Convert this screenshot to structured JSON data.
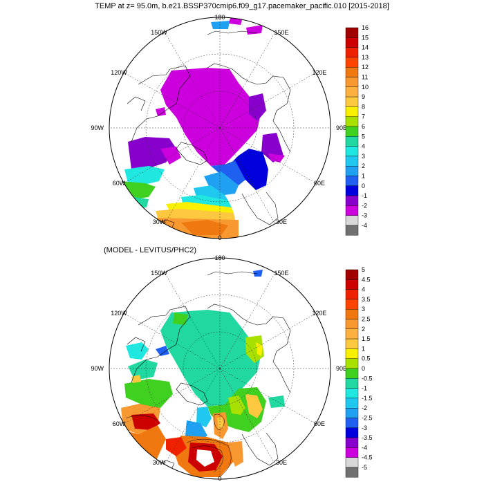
{
  "title": "TEMP at z=  95.0m, b.e21.BSSP370cmip6.f09_g17.pacemaker_pacific.010 [2015-2018]",
  "subtitle": "(MODEL - LEVITUS/PHC2)",
  "chart_data": [
    {
      "type": "heatmap",
      "projection": "north-polar-stereographic",
      "grid": true,
      "longitude_labels": [
        "180",
        "150E",
        "120E",
        "90E",
        "60E",
        "30E",
        "0",
        "30W",
        "60W",
        "90W",
        "120W",
        "150W"
      ],
      "colorbar": {
        "placement": "right",
        "labels": [
          "16",
          "15",
          "14",
          "13",
          "12",
          "11",
          "10",
          "9",
          "8",
          "7",
          "6",
          "5",
          "4",
          "3",
          "2",
          "1",
          "0",
          "-1",
          "-2",
          "-3",
          "-4"
        ],
        "colors": [
          "#a00000",
          "#cc0000",
          "#ee2200",
          "#ff4400",
          "#f07810",
          "#f89830",
          "#fcb040",
          "#fcc840",
          "#f8f000",
          "#a8e000",
          "#40d020",
          "#20d8a0",
          "#20e8e0",
          "#20c8f0",
          "#20a0f0",
          "#2060f0",
          "#0000dd",
          "#8800cc",
          "#cc00dd",
          "#d8d8d8",
          "#707070"
        ]
      }
    },
    {
      "type": "heatmap",
      "projection": "north-polar-stereographic",
      "grid": true,
      "longitude_labels": [
        "180",
        "150E",
        "120E",
        "90E",
        "60E",
        "30E",
        "0",
        "30W",
        "60W",
        "90W",
        "120W",
        "150W"
      ],
      "colorbar": {
        "placement": "right",
        "labels": [
          "5",
          "4.5",
          "4",
          "3.5",
          "3",
          "2.5",
          "2",
          "1.5",
          "1",
          "0.5",
          "0",
          "-0.5",
          "-1",
          "-1.5",
          "-2",
          "-2.5",
          "-3",
          "-3.5",
          "-4",
          "-4.5",
          "-5"
        ],
        "colors": [
          "#a00000",
          "#cc0000",
          "#ee2200",
          "#ff4400",
          "#f07810",
          "#f89830",
          "#fcb040",
          "#fcc840",
          "#f8f000",
          "#a8e000",
          "#40d020",
          "#20d8a0",
          "#20e8e0",
          "#20c8f0",
          "#20a0f0",
          "#2060f0",
          "#0000dd",
          "#8800cc",
          "#cc00dd",
          "#d8d8d8",
          "#707070"
        ]
      }
    }
  ]
}
